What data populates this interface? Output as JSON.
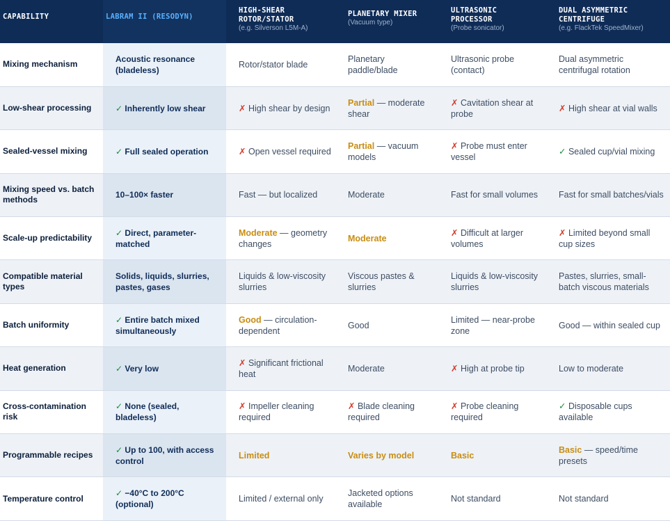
{
  "headers": [
    {
      "main": "CAPABILITY",
      "sub": ""
    },
    {
      "main": "LABRAM II (RESODYN)",
      "sub": ""
    },
    {
      "main": "HIGH-SHEAR ROTOR/STATOR",
      "sub": "(e.g. Silverson L5M-A)"
    },
    {
      "main": "PLANETARY MIXER",
      "sub": "(Vacuum type)"
    },
    {
      "main": "ULTRASONIC PROCESSOR",
      "sub": "(Probe sonicator)"
    },
    {
      "main": "DUAL ASYMMETRIC CENTRIFUGE",
      "sub": "(e.g. FlackTek SpeedMixer)"
    }
  ],
  "rows": [
    {
      "cells": [
        {
          "mark": "",
          "bold": "",
          "text": "Mixing mechanism"
        },
        {
          "mark": "",
          "bold": "",
          "text": "Acoustic resonance (bladeless)"
        },
        {
          "mark": "",
          "bold": "",
          "text": "Rotor/stator blade"
        },
        {
          "mark": "",
          "bold": "",
          "text": "Planetary paddle/blade"
        },
        {
          "mark": "",
          "bold": "",
          "text": "Ultrasonic probe (contact)"
        },
        {
          "mark": "",
          "bold": "",
          "text": "Dual asymmetric centrifugal rotation"
        }
      ]
    },
    {
      "cells": [
        {
          "mark": "",
          "bold": "",
          "text": "Low-shear processing"
        },
        {
          "mark": "✓",
          "bold": "",
          "text": "Inherently low shear"
        },
        {
          "mark": "✗",
          "bold": "",
          "text": "High shear by design"
        },
        {
          "mark": "",
          "bold": "Partial",
          "text": " — moderate shear"
        },
        {
          "mark": "✗",
          "bold": "",
          "text": "Cavitation shear at probe"
        },
        {
          "mark": "✗",
          "bold": "",
          "text": "High shear at vial walls"
        }
      ]
    },
    {
      "cells": [
        {
          "mark": "",
          "bold": "",
          "text": "Sealed-vessel mixing"
        },
        {
          "mark": "✓",
          "bold": "",
          "text": "Full sealed operation"
        },
        {
          "mark": "✗",
          "bold": "",
          "text": "Open vessel required"
        },
        {
          "mark": "",
          "bold": "Partial",
          "text": " — vacuum models"
        },
        {
          "mark": "✗",
          "bold": "",
          "text": "Probe must enter vessel"
        },
        {
          "mark": "✓",
          "bold": "",
          "text": "Sealed cup/vial mixing"
        }
      ]
    },
    {
      "cells": [
        {
          "mark": "",
          "bold": "",
          "text": "Mixing speed vs. batch methods"
        },
        {
          "mark": "",
          "bold": "",
          "text": "10–100× faster"
        },
        {
          "mark": "",
          "bold": "",
          "text": "Fast — but localized"
        },
        {
          "mark": "",
          "bold": "",
          "text": "Moderate"
        },
        {
          "mark": "",
          "bold": "",
          "text": "Fast for small volumes"
        },
        {
          "mark": "",
          "bold": "",
          "text": "Fast for small batches/vials"
        }
      ]
    },
    {
      "cells": [
        {
          "mark": "",
          "bold": "",
          "text": "Scale-up predictability"
        },
        {
          "mark": "✓",
          "bold": "",
          "text": "Direct, parameter-matched"
        },
        {
          "mark": "",
          "bold": "Moderate",
          "text": " — geometry changes"
        },
        {
          "mark": "",
          "bold": "Moderate",
          "text": ""
        },
        {
          "mark": "✗",
          "bold": "",
          "text": "Difficult at larger volumes"
        },
        {
          "mark": "✗",
          "bold": "",
          "text": "Limited beyond small cup sizes"
        }
      ]
    },
    {
      "cells": [
        {
          "mark": "",
          "bold": "",
          "text": "Compatible material types"
        },
        {
          "mark": "",
          "bold": "",
          "text": "Solids, liquids, slurries, pastes, gases"
        },
        {
          "mark": "",
          "bold": "",
          "text": "Liquids & low-viscosity slurries"
        },
        {
          "mark": "",
          "bold": "",
          "text": "Viscous pastes & slurries"
        },
        {
          "mark": "",
          "bold": "",
          "text": "Liquids & low-viscosity slurries"
        },
        {
          "mark": "",
          "bold": "",
          "text": "Pastes, slurries, small-batch viscous materials"
        }
      ]
    },
    {
      "cells": [
        {
          "mark": "",
          "bold": "",
          "text": "Batch uniformity"
        },
        {
          "mark": "✓",
          "bold": "",
          "text": "Entire batch mixed simultaneously"
        },
        {
          "mark": "",
          "bold": "Good",
          "text": " — circulation-dependent"
        },
        {
          "mark": "",
          "bold": "",
          "text": "Good"
        },
        {
          "mark": "",
          "bold": "",
          "text": "Limited — near-probe zone"
        },
        {
          "mark": "",
          "bold": "",
          "text": "Good — within sealed cup"
        }
      ]
    },
    {
      "cells": [
        {
          "mark": "",
          "bold": "",
          "text": "Heat generation"
        },
        {
          "mark": "✓",
          "bold": "",
          "text": "Very low"
        },
        {
          "mark": "✗",
          "bold": "",
          "text": "Significant frictional heat"
        },
        {
          "mark": "",
          "bold": "",
          "text": "Moderate"
        },
        {
          "mark": "✗",
          "bold": "",
          "text": "High at probe tip"
        },
        {
          "mark": "",
          "bold": "",
          "text": "Low to moderate"
        }
      ]
    },
    {
      "cells": [
        {
          "mark": "",
          "bold": "",
          "text": "Cross-contamination risk"
        },
        {
          "mark": "✓",
          "bold": "",
          "text": "None (sealed, bladeless)"
        },
        {
          "mark": "✗",
          "bold": "",
          "text": "Impeller cleaning required"
        },
        {
          "mark": "✗",
          "bold": "",
          "text": "Blade cleaning required"
        },
        {
          "mark": "✗",
          "bold": "",
          "text": "Probe cleaning required"
        },
        {
          "mark": "✓",
          "bold": "",
          "text": "Disposable cups available"
        }
      ]
    },
    {
      "cells": [
        {
          "mark": "",
          "bold": "",
          "text": "Programmable recipes"
        },
        {
          "mark": "✓",
          "bold": "",
          "text": "Up to 100, with access control"
        },
        {
          "mark": "",
          "bold": "Limited",
          "text": ""
        },
        {
          "mark": "",
          "bold": "Varies by model",
          "text": ""
        },
        {
          "mark": "",
          "bold": "Basic",
          "text": ""
        },
        {
          "mark": "",
          "bold": "Basic",
          "text": " — speed/time presets"
        }
      ]
    },
    {
      "cells": [
        {
          "mark": "",
          "bold": "",
          "text": "Temperature control"
        },
        {
          "mark": "✓",
          "bold": "",
          "text": "−40°C to 200°C (optional)"
        },
        {
          "mark": "",
          "bold": "",
          "text": "Limited / external only"
        },
        {
          "mark": "",
          "bold": "",
          "text": "Jacketed options available"
        },
        {
          "mark": "",
          "bold": "",
          "text": "Not standard"
        },
        {
          "mark": "",
          "bold": "",
          "text": "Not standard"
        }
      ]
    }
  ]
}
